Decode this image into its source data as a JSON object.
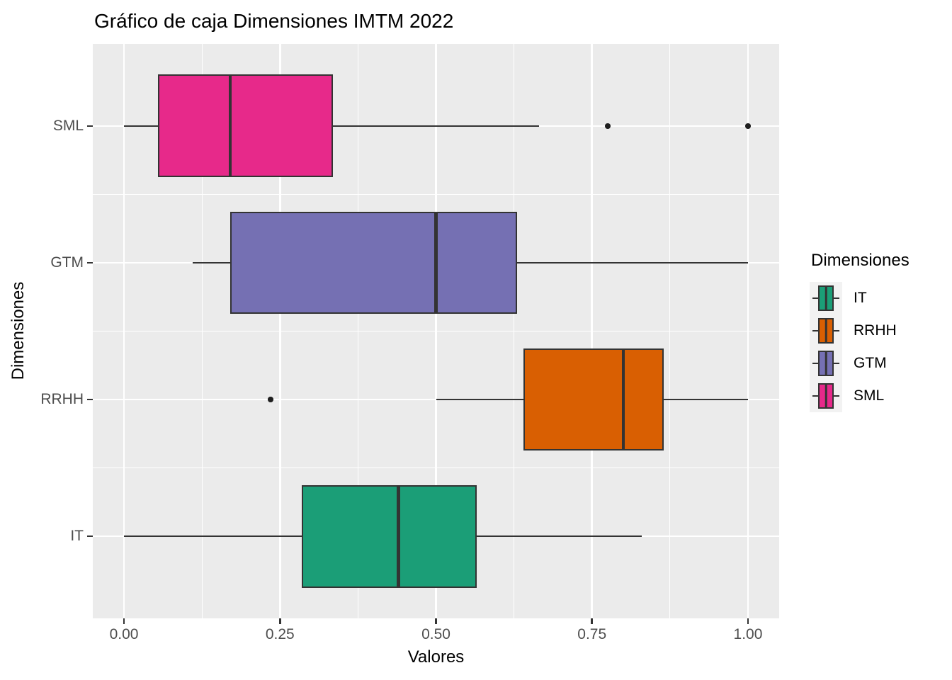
{
  "title": "Gráfico de caja Dimensiones IMTM 2022",
  "legend": {
    "title": "Dimensiones",
    "key_background": "#F2F2F2",
    "entries": [
      {
        "label": "IT",
        "color": "#1B9E77"
      },
      {
        "label": "RRHH",
        "color": "#D95F02"
      },
      {
        "label": "GTM",
        "color": "#7570B3"
      },
      {
        "label": "SML",
        "color": "#E7298A"
      }
    ]
  },
  "chart_data": {
    "type": "boxplot",
    "orientation": "horizontal",
    "title": "Gráfico de caja Dimensiones IMTM 2022",
    "xlabel": "Valores",
    "ylabel": "Dimensiones",
    "xlim": [
      -0.05,
      1.05
    ],
    "grid": true,
    "panel_background": "#EBEBEB",
    "grid_color": "#FFFFFF",
    "line_color": "#333333",
    "tick_label_color": "#4D4D4D",
    "x_ticks": [
      {
        "value": 0.0,
        "label": "0.00"
      },
      {
        "value": 0.25,
        "label": "0.25"
      },
      {
        "value": 0.5,
        "label": "0.50"
      },
      {
        "value": 0.75,
        "label": "0.75"
      },
      {
        "value": 1.0,
        "label": "1.00"
      }
    ],
    "x_minor_gridlines": [
      0.125,
      0.375,
      0.625,
      0.875
    ],
    "categories_top_to_bottom": [
      "SML",
      "GTM",
      "RRHH",
      "IT"
    ],
    "series": [
      {
        "name": "SML",
        "color": "#E7298A",
        "whisker_min": 0.0,
        "q1": 0.055,
        "median": 0.17,
        "q3": 0.335,
        "whisker_max": 0.665,
        "outliers": [
          0.775,
          1.0
        ]
      },
      {
        "name": "GTM",
        "color": "#7570B3",
        "whisker_min": 0.11,
        "q1": 0.17,
        "median": 0.5,
        "q3": 0.63,
        "whisker_max": 1.0,
        "outliers": []
      },
      {
        "name": "RRHH",
        "color": "#D95F02",
        "whisker_min": 0.5,
        "q1": 0.64,
        "median": 0.8,
        "q3": 0.865,
        "whisker_max": 1.0,
        "outliers": [
          0.235
        ]
      },
      {
        "name": "IT",
        "color": "#1B9E77",
        "whisker_min": 0.0,
        "q1": 0.285,
        "median": 0.44,
        "q3": 0.565,
        "whisker_max": 0.83,
        "outliers": []
      }
    ]
  }
}
